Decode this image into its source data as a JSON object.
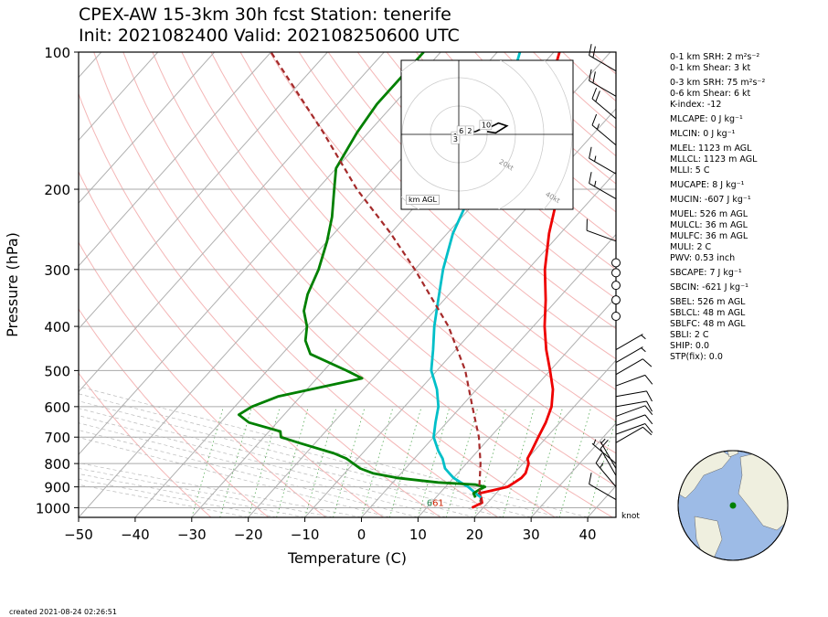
{
  "titles": {
    "line1": "CPEX-AW 15-3km  30h fcst  Station: tenerife",
    "line2": "Init: 2021082400  Valid: 202108250600 UTC"
  },
  "chart_data": {
    "type": "line",
    "subtype": "skew-T log-p",
    "xlabel": "Temperature (C)",
    "ylabel": "Pressure (hPa)",
    "xlim": [
      -50,
      45
    ],
    "ylim": [
      1050,
      100
    ],
    "yscale": "log",
    "x_ticks": [
      "−50",
      "−40",
      "−30",
      "−20",
      "−10",
      "0",
      "10",
      "20",
      "30",
      "40"
    ],
    "y_ticks": [
      "100",
      "200",
      "300",
      "400",
      "500",
      "600",
      "700",
      "800",
      "900",
      "1000"
    ],
    "wind_unit": "knot",
    "series": [
      {
        "color": "#ee0000",
        "points": [
          [
            1000,
            18
          ],
          [
            975,
            19
          ],
          [
            950,
            18
          ],
          [
            930,
            17
          ],
          [
            915,
            19
          ],
          [
            900,
            21
          ],
          [
            880,
            21.5
          ],
          [
            860,
            22
          ],
          [
            840,
            22
          ],
          [
            820,
            21.5
          ],
          [
            800,
            21
          ],
          [
            780,
            20
          ],
          [
            750,
            19.5
          ],
          [
            700,
            18.5
          ],
          [
            650,
            17.5
          ],
          [
            600,
            16
          ],
          [
            550,
            13.5
          ],
          [
            500,
            10
          ],
          [
            450,
            6
          ],
          [
            400,
            2
          ],
          [
            350,
            -2
          ],
          [
            300,
            -7
          ],
          [
            250,
            -12
          ],
          [
            220,
            -15
          ],
          [
            200,
            -18
          ],
          [
            175,
            -23
          ],
          [
            150,
            -29
          ],
          [
            130,
            -34
          ],
          [
            115,
            -36
          ],
          [
            100,
            -39
          ]
        ]
      },
      {
        "color": "#00bfc8",
        "points": [
          [
            950,
            18
          ],
          [
            925,
            16
          ],
          [
            900,
            14
          ],
          [
            880,
            12
          ],
          [
            860,
            10
          ],
          [
            840,
            8.5
          ],
          [
            820,
            7
          ],
          [
            800,
            6
          ],
          [
            780,
            5
          ],
          [
            750,
            3
          ],
          [
            700,
            0
          ],
          [
            650,
            -2
          ],
          [
            600,
            -4
          ],
          [
            550,
            -7
          ],
          [
            500,
            -11
          ],
          [
            450,
            -14
          ],
          [
            400,
            -17.5
          ],
          [
            350,
            -21
          ],
          [
            300,
            -25
          ],
          [
            250,
            -29
          ],
          [
            220,
            -31
          ],
          [
            200,
            -33
          ],
          [
            175,
            -36
          ],
          [
            150,
            -39
          ],
          [
            130,
            -41
          ],
          [
            115,
            -43
          ],
          [
            100,
            -46
          ]
        ]
      },
      {
        "color": "#008000",
        "points": [
          [
            950,
            17
          ],
          [
            930,
            16
          ],
          [
            910,
            16.5
          ],
          [
            900,
            17
          ],
          [
            890,
            15
          ],
          [
            880,
            8
          ],
          [
            860,
            0
          ],
          [
            840,
            -5
          ],
          [
            820,
            -8
          ],
          [
            800,
            -10
          ],
          [
            780,
            -12
          ],
          [
            760,
            -15
          ],
          [
            720,
            -23
          ],
          [
            700,
            -27
          ],
          [
            680,
            -28
          ],
          [
            650,
            -35
          ],
          [
            625,
            -38
          ],
          [
            600,
            -37
          ],
          [
            570,
            -34
          ],
          [
            540,
            -27
          ],
          [
            520,
            -22
          ],
          [
            500,
            -26
          ],
          [
            460,
            -35
          ],
          [
            430,
            -38
          ],
          [
            400,
            -40
          ],
          [
            370,
            -43
          ],
          [
            340,
            -45
          ],
          [
            300,
            -47
          ],
          [
            260,
            -50
          ],
          [
            230,
            -53
          ],
          [
            200,
            -57
          ],
          [
            180,
            -60
          ],
          [
            150,
            -62
          ],
          [
            130,
            -63
          ],
          [
            115,
            -63
          ],
          [
            100,
            -63
          ]
        ]
      },
      {
        "color": "#a52a2a",
        "dashed": true,
        "points": [
          [
            980,
            19
          ],
          [
            900,
            16
          ],
          [
            800,
            12.5
          ],
          [
            700,
            8
          ],
          [
            600,
            2
          ],
          [
            500,
            -5
          ],
          [
            400,
            -15
          ],
          [
            300,
            -30
          ],
          [
            250,
            -40
          ],
          [
            200,
            -53
          ],
          [
            150,
            -68
          ],
          [
            100,
            -90
          ]
        ]
      }
    ],
    "near_surface_labels": [
      {
        "text": "61",
        "color": "#cc2200",
        "p": 1000,
        "t": 11
      },
      {
        "text": "6",
        "color": "#2e8b57",
        "p": 1000,
        "t": 10
      }
    ],
    "wind_barbs": [
      {
        "p": 960,
        "speed": 10,
        "dir": 300
      },
      {
        "p": 900,
        "speed": 15,
        "dir": 320
      },
      {
        "p": 850,
        "speed": 10,
        "dir": 330
      },
      {
        "p": 820,
        "speed": 5,
        "dir": 330
      },
      {
        "p": 800,
        "speed": 5,
        "dir": 310
      },
      {
        "p": 720,
        "speed": 10,
        "dir": 60
      },
      {
        "p": 690,
        "speed": 10,
        "dir": 70
      },
      {
        "p": 660,
        "speed": 10,
        "dir": 70
      },
      {
        "p": 630,
        "speed": 10,
        "dir": 70
      },
      {
        "p": 600,
        "speed": 10,
        "dir": 80
      },
      {
        "p": 570,
        "speed": 10,
        "dir": 80
      },
      {
        "p": 540,
        "speed": 10,
        "dir": 70
      },
      {
        "p": 510,
        "speed": 10,
        "dir": 60
      },
      {
        "p": 480,
        "speed": 5,
        "dir": 60
      },
      {
        "p": 450,
        "speed": 5,
        "dir": 60
      },
      {
        "p": 380,
        "calm": true
      },
      {
        "p": 350,
        "calm": true
      },
      {
        "p": 325,
        "calm": true
      },
      {
        "p": 305,
        "calm": true
      },
      {
        "p": 290,
        "calm": true
      },
      {
        "p": 260,
        "speed": 10,
        "dir": 290
      },
      {
        "p": 210,
        "speed": 15,
        "dir": 300
      },
      {
        "p": 185,
        "speed": 15,
        "dir": 300
      },
      {
        "p": 160,
        "speed": 15,
        "dir": 310
      },
      {
        "p": 140,
        "speed": 20,
        "dir": 310
      },
      {
        "p": 125,
        "speed": 20,
        "dir": 300
      },
      {
        "p": 110,
        "speed": 20,
        "dir": 300
      }
    ],
    "hodograph": {
      "ring_labels": [
        "20kt",
        "40kt",
        "60kt",
        "80kt"
      ],
      "box_label": "km AGL",
      "points": [
        [
          -2,
          -1
        ],
        [
          0,
          0
        ],
        [
          3,
          0.5
        ],
        [
          6,
          1
        ],
        [
          8,
          2
        ],
        [
          10,
          2
        ],
        [
          14,
          4
        ],
        [
          17,
          3
        ],
        [
          13,
          0.5
        ],
        [
          10,
          1
        ]
      ],
      "height_labels": [
        {
          "text": "1",
          "u": -1,
          "v": -1
        },
        {
          "text": "3",
          "u": -1,
          "v": -2
        },
        {
          "text": "6",
          "u": 1,
          "v": 1
        },
        {
          "text": "2",
          "u": 4,
          "v": 1
        },
        {
          "text": "10",
          "u": 9,
          "v": 3
        }
      ]
    },
    "globe": {
      "station_lat": 28.3,
      "station_lon": -16.5
    }
  },
  "stats": [
    "0-1 km SRH: 2 m²s⁻²",
    "0-1 km Shear: 3 kt",
    "0-3 km SRH: 75 m²s⁻²",
    "0-6 km Shear: 6 kt",
    "K-index: -12",
    "MLCAPE: 0 J kg⁻¹",
    "MLCIN: 0 J kg⁻¹",
    "MLEL: 1123 m AGL",
    "MLLCL: 1123 m AGL",
    "MLLI: 5 C",
    "MUCAPE: 8 J kg⁻¹",
    "MUCIN: -607 J kg⁻¹",
    "MUEL: 526 m AGL",
    "MULCL: 36 m AGL",
    "MULFC: 36 m AGL",
    "MULI: 2 C",
    "PWV: 0.53 inch",
    "SBCAPE: 7 J kg⁻¹",
    "SBCIN: -621 J kg⁻¹",
    "SBEL: 526 m AGL",
    "SBLCL: 48 m AGL",
    "SBLFC: 48 m AGL",
    "SBLI: 2 C",
    "SHIP: 0.0",
    "STP(fix): 0.0"
  ],
  "footer": {
    "created": "created 2021-08-24 02:26:51"
  }
}
